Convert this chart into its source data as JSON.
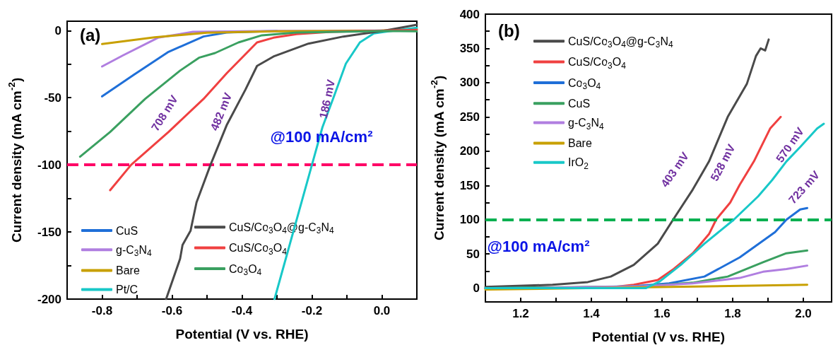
{
  "chart_data": [
    {
      "type": "line",
      "title": "(a)",
      "xlabel": "Potential (V vs. RHE)",
      "ylabel": "Current density (mA cm$^{-2}$)",
      "xlim": [
        -0.9,
        0.1
      ],
      "ylim": [
        -200,
        7
      ],
      "xticks": [
        -0.8,
        {
          "value": -0.7,
          "label": null
        },
        -0.6,
        {
          "value": -0.5,
          "label": null
        },
        -0.4,
        {
          "value": -0.3,
          "label": null
        },
        -0.2,
        {
          "value": -0.1,
          "label": null
        },
        {
          "value": 0,
          "label": "0.0"
        }
      ],
      "yticks": [
        -200,
        {
          "value": -175,
          "label": null
        },
        -150,
        {
          "value": -125,
          "label": null
        },
        -100,
        {
          "value": -75,
          "label": null
        },
        -50,
        {
          "value": -25,
          "label": null
        },
        0
      ],
      "grid": false,
      "legend": "bottom left",
      "marker": "none",
      "line_style": "solid",
      "ref_lines": [
        {
          "axis": "y",
          "value": -100,
          "color": "#ff0066",
          "line_style": "dashed"
        }
      ],
      "annotations": [
        "708 mV",
        "482 mV",
        "186 mV",
        "@100 mA/cm²"
      ],
      "series": [
        {
          "name": "CuS",
          "color": "#1f6fd8",
          "x": [
            -0.8,
            -0.71,
            -0.61,
            -0.51,
            -0.444,
            -0.3
          ],
          "values": [
            -49,
            -33,
            -15.8,
            -4.4,
            -1.4,
            -0.3
          ]
        },
        {
          "name": "g-C$_{3}$N$_{4}$",
          "color": "#b07ee0",
          "x": [
            -0.8,
            -0.74,
            -0.64,
            -0.54,
            -0.3,
            0
          ],
          "values": [
            -26.7,
            -18.4,
            -5.3,
            -0.9,
            -0.2,
            0
          ]
        },
        {
          "name": "Bare",
          "color": "#c8a000",
          "x": [
            -0.8,
            -0.65,
            -0.5,
            -0.3,
            0,
            0.1
          ],
          "values": [
            -10,
            -5,
            -1.5,
            -0.5,
            0,
            1
          ]
        },
        {
          "name": "Pt/C",
          "color": "#18c8c8",
          "x": [
            -0.307,
            -0.2,
            -0.17,
            -0.137,
            -0.103,
            -0.063,
            -0.023,
            0.023,
            0.1
          ],
          "values": [
            -200,
            -100,
            -72,
            -49,
            -24.6,
            -8.8,
            -2.1,
            -0.4,
            2.1
          ]
        },
        {
          "name": "CuS/Co$_{3}$O$_{4}$@g-C$_{3}$N$_{4}$",
          "color": "#4a4a4a",
          "x": [
            -0.617,
            -0.577,
            -0.57,
            -0.547,
            -0.53,
            -0.49,
            -0.443,
            -0.39,
            -0.357,
            -0.31,
            -0.21,
            -0.11,
            0,
            0.1
          ],
          "values": [
            -200,
            -170,
            -159.7,
            -149,
            -128,
            -100,
            -70,
            -43.9,
            -26.3,
            -19.3,
            -9.7,
            -4.4,
            -0.4,
            4.4
          ]
        },
        {
          "name": "CuS/Co$_{3}$O$_{4}$",
          "color": "#f04040",
          "x": [
            -0.777,
            -0.717,
            -0.61,
            -0.51,
            -0.443,
            -0.357,
            -0.31,
            -0.244,
            -0.144,
            0,
            0.1
          ],
          "values": [
            -118.9,
            -100,
            -75.5,
            -50.9,
            -31.6,
            -8.8,
            -5.3,
            -2.6,
            -0.9,
            0,
            0.5
          ]
        },
        {
          "name": "Co$_{3}$O$_{4}$",
          "color": "#3aa060",
          "x": [
            -0.863,
            -0.777,
            -0.677,
            -0.577,
            -0.523,
            -0.477,
            -0.41,
            -0.343,
            -0.244,
            0,
            0.1
          ],
          "values": [
            -93.9,
            -75.5,
            -50.9,
            -29.8,
            -20.2,
            -16.7,
            -8.8,
            -3.5,
            -1.4,
            -0.3,
            -0.5
          ]
        }
      ]
    },
    {
      "type": "line",
      "title": "(b)",
      "xlabel": "Potential (V vs. RHE)",
      "ylabel": "Current density (mA cm$^{-2}$)",
      "xlim": [
        1.1,
        2.08
      ],
      "ylim": [
        -20,
        400
      ],
      "xticks": [
        1.2,
        {
          "value": 1.3,
          "label": null
        },
        1.4,
        {
          "value": 1.5,
          "label": null
        },
        1.6,
        {
          "value": 1.7,
          "label": null
        },
        1.8,
        {
          "value": 1.9,
          "label": null
        },
        {
          "value": 2,
          "label": "2.0"
        }
      ],
      "yticks": [
        0,
        {
          "value": 25,
          "label": null
        },
        50,
        {
          "value": 75,
          "label": null
        },
        100,
        {
          "value": 125,
          "label": null
        },
        150,
        {
          "value": 175,
          "label": null
        },
        200,
        {
          "value": 225,
          "label": null
        },
        250,
        {
          "value": 275,
          "label": null
        },
        300,
        {
          "value": 325,
          "label": null
        },
        350,
        {
          "value": 375,
          "label": null
        },
        400
      ],
      "grid": false,
      "legend": "top left",
      "marker": "none",
      "line_style": "solid",
      "ref_lines": [
        {
          "axis": "y",
          "value": 100,
          "color": "#00b050",
          "line_style": "dashed"
        }
      ],
      "annotations": [
        "403 mV",
        "528 mV",
        "570 mV",
        "723 mV",
        "@100 mA/cm²"
      ],
      "series": [
        {
          "name": "CuS/Co$_{3}$O$_{4}$@g-C$_{3}$N$_{4}$",
          "color": "#4a4a4a",
          "x": [
            1.1,
            1.29,
            1.39,
            1.455,
            1.52,
            1.588,
            1.63,
            1.687,
            1.733,
            1.786,
            1.84,
            1.866,
            1.879,
            1.892,
            1.902
          ],
          "values": [
            2,
            5,
            9,
            17,
            34,
            65,
            99,
            144,
            185,
            250,
            298,
            339,
            350,
            347,
            363
          ]
        },
        {
          "name": "CuS/Co$_{3}$O$_{4}$",
          "color": "#f04040",
          "x": [
            1.1,
            1.45,
            1.52,
            1.588,
            1.633,
            1.687,
            1.733,
            1.753,
            1.793,
            1.82,
            1.86,
            1.906,
            1.936
          ],
          "values": [
            0,
            1,
            5,
            12,
            28,
            51,
            79,
            100,
            125,
            151,
            185,
            233,
            250
          ]
        },
        {
          "name": "Co$_{3}$O$_{4}$",
          "color": "#1f6fd8",
          "x": [
            1.1,
            1.5,
            1.62,
            1.72,
            1.82,
            1.92,
            1.952,
            1.991,
            2.011
          ],
          "values": [
            0,
            2,
            7,
            17,
            45,
            82,
            100,
            115,
            117
          ]
        },
        {
          "name": "CuS",
          "color": "#3aa060",
          "x": [
            1.1,
            1.55,
            1.687,
            1.786,
            1.886,
            1.952,
            2.011
          ],
          "values": [
            0,
            3,
            8,
            17,
            38,
            51,
            55
          ]
        },
        {
          "name": "g-C$_{3}$N$_{4}$",
          "color": "#b07ee0",
          "x": [
            1.1,
            1.55,
            1.687,
            1.82,
            1.886,
            1.952,
            2.011
          ],
          "values": [
            -1,
            3,
            7,
            15,
            24,
            28,
            33
          ]
        },
        {
          "name": "Bare",
          "color": "#c8a000",
          "x": [
            1.1,
            2.011
          ],
          "values": [
            -2,
            5
          ]
        },
        {
          "name": "IrO$_{2}$",
          "color": "#18c8c8",
          "x": [
            1.1,
            1.554,
            1.594,
            1.653,
            1.72,
            1.803,
            1.872,
            1.912,
            1.952,
            1.991,
            2.039,
            2.058
          ],
          "values": [
            0,
            0,
            10,
            34,
            65,
            100,
            134,
            158,
            185,
            206,
            233,
            240
          ]
        }
      ]
    }
  ]
}
